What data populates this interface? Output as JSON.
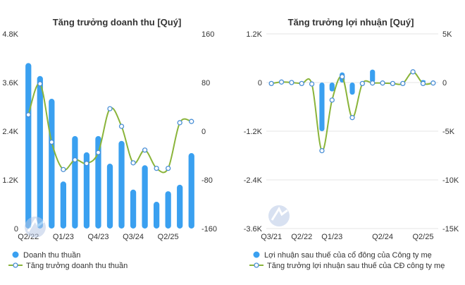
{
  "colors": {
    "bar": "#3aa0f0",
    "line": "#8ab43a",
    "marker_fill": "#ffffff",
    "marker_stroke": "#4a8fd6",
    "grid": "#e6e6e6"
  },
  "chart_data": [
    {
      "type": "bar",
      "title": "Tăng trưởng doanh thu [Quý]",
      "categories": [
        "Q2/22",
        "Q3/22",
        "Q4/22",
        "Q1/23",
        "Q2/23",
        "Q3/23",
        "Q4/23",
        "Q1/24",
        "Q2/24",
        "Q3/24",
        "Q4/24",
        "Q1/25",
        "Q2/25",
        "Q3/25",
        "Q4/25"
      ],
      "x_tick_labels": [
        "Q2/22",
        "Q1/23",
        "Q4/23",
        "Q3/24",
        "Q2/25"
      ],
      "left_axis": {
        "ylim": [
          0,
          4.8
        ],
        "ticks": [
          "0",
          "1.2K",
          "2.4K",
          "3.6K",
          "4.8K"
        ]
      },
      "right_axis": {
        "ylim": [
          -160,
          160
        ],
        "ticks": [
          "-160",
          "-80",
          "0",
          "80",
          "160"
        ]
      },
      "series": [
        {
          "name": "Doanh thu thuần",
          "kind": "bar",
          "axis": "left",
          "values": [
            4.08,
            3.76,
            3.2,
            1.16,
            2.28,
            1.88,
            2.28,
            1.6,
            2.16,
            0.96,
            1.56,
            0.66,
            0.92,
            1.08,
            1.86
          ]
        },
        {
          "name": "Tăng trưởng doanh thu thuần",
          "kind": "line",
          "axis": "right",
          "values": [
            27,
            78,
            -18,
            -63,
            -47,
            -53,
            -35,
            37,
            8,
            -52,
            -31,
            -61,
            -61,
            14,
            16
          ]
        }
      ]
    },
    {
      "type": "bar",
      "title": "Tăng trưởng lợi nhuận [Quý]",
      "categories": [
        "Q3/21",
        "Q4/21",
        "Q1/22",
        "Q2/22",
        "Q3/22",
        "Q4/22",
        "Q1/23",
        "Q2/23",
        "Q3/23",
        "Q4/23",
        "Q1/24",
        "Q2/24",
        "Q3/24",
        "Q4/24",
        "Q1/25",
        "Q2/25",
        "Q3/25"
      ],
      "x_tick_labels": [
        "Q3/21",
        "Q2/22",
        "Q1/23",
        "Q2/24",
        "Q2/25"
      ],
      "left_axis": {
        "ylim": [
          -3.6,
          1.2
        ],
        "ticks": [
          "-3.6K",
          "-2.4K",
          "-1.2K",
          "0",
          "1.2K"
        ]
      },
      "right_axis": {
        "ylim": [
          -15,
          5
        ],
        "ticks": [
          "-15K",
          "-10K",
          "-5K",
          "0",
          "5K"
        ]
      },
      "series": [
        {
          "name": "Lợi nhuận sau thuế của cổ đông của Công ty mẹ",
          "kind": "bar",
          "axis": "left",
          "values": [
            0,
            0,
            0,
            0,
            0,
            -1.2,
            -0.22,
            0.25,
            -0.3,
            0,
            0.32,
            0,
            0,
            0,
            0,
            0.06,
            0
          ]
        },
        {
          "name": "Tăng trưởng lợi nhuận sau thuế của CĐ công ty mẹ",
          "kind": "line",
          "axis": "right",
          "values": [
            -0.1,
            0.05,
            0,
            -0.1,
            -0.15,
            -7,
            -1.8,
            0.6,
            -3.6,
            -0.1,
            -0.05,
            -0.05,
            -0.1,
            -0.1,
            1.1,
            -0.1,
            -0.05
          ]
        }
      ]
    }
  ]
}
